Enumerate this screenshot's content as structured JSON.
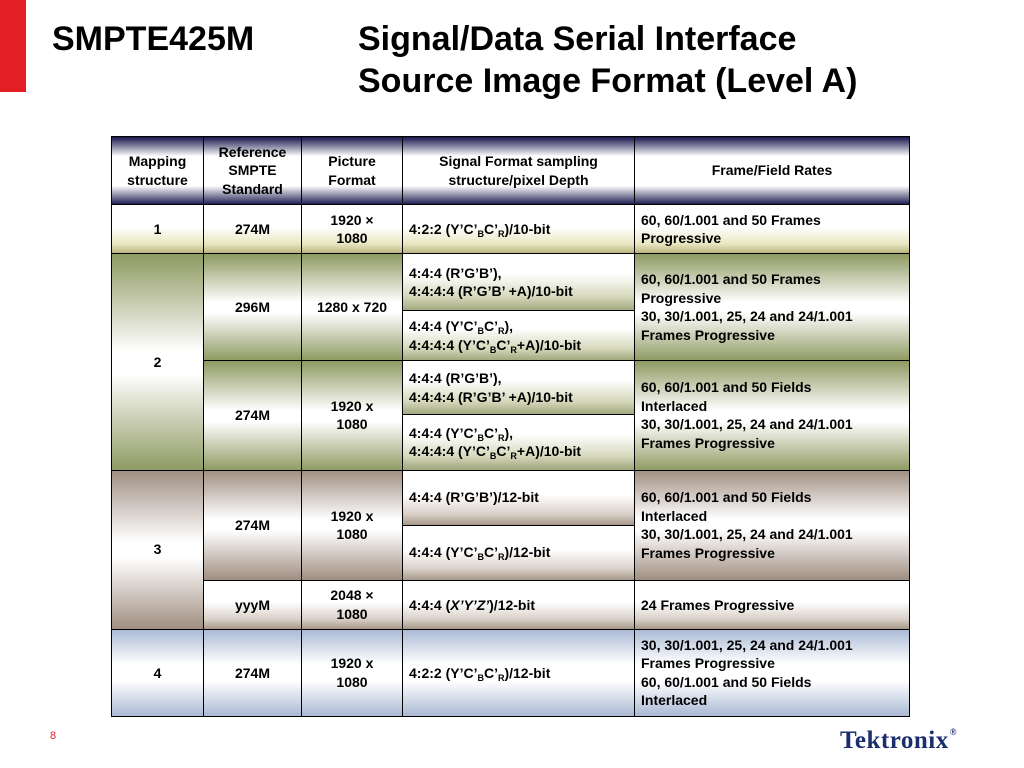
{
  "title": {
    "left": "SMPTE425M",
    "right_line1": "Signal/Data Serial Interface",
    "right_line2": "Source Image Format (Level A)"
  },
  "table": {
    "headers": [
      "Mapping structure",
      "Reference SMPTE Standard",
      "Picture Format",
      "Signal Format sampling structure/pixel Depth",
      "Frame/Field Rates"
    ],
    "rows": {
      "m1": {
        "mapping": "1",
        "standard": "274M",
        "picture": [
          "1920 ×",
          "1080"
        ],
        "signal": {
          "pre": "4:2:2 (Y’C’",
          "s1": "B",
          "mid": "C’",
          "s2": "R",
          "post": ")/10-bit"
        },
        "rates": [
          "60, 60/1.001 and 50 Frames",
          "Progressive"
        ]
      },
      "m2": {
        "mapping": "2",
        "a": {
          "standard": "296M",
          "picture": "1280 x 720",
          "signal_rgb": [
            "4:4:4 (R’G’B’),",
            "4:4:4:4 (R’G’B’ +A)/10-bit"
          ],
          "signal_ycbcr": {
            "l1_pre": "4:4:4 (Y’C’",
            "l1_s1": "B",
            "l1_mid": "C’",
            "l1_s2": "R",
            "l1_post": "),",
            "l2_pre": "4:4:4:4 (Y’C’",
            "l2_s1": "B",
            "l2_mid": "C’",
            "l2_s2": "R",
            "l2_post": "+A)/10-bit"
          },
          "rates": [
            "60, 60/1.001 and 50 Frames",
            "Progressive",
            "30, 30/1.001, 25, 24 and 24/1.001",
            "Frames Progressive"
          ]
        },
        "b": {
          "standard": "274M",
          "picture": [
            "1920 x",
            "1080"
          ],
          "signal_rgb": [
            "4:4:4 (R’G’B’),",
            "4:4:4:4 (R’G’B’ +A)/10-bit"
          ],
          "signal_ycbcr": {
            "l1_pre": "4:4:4 (Y’C’",
            "l1_s1": "B",
            "l1_mid": "C’",
            "l1_s2": "R",
            "l1_post": "),",
            "l2_pre": "4:4:4:4 (Y’C’",
            "l2_s1": "B",
            "l2_mid": "C’",
            "l2_s2": "R",
            "l2_post": "+A)/10-bit"
          },
          "rates": [
            "60, 60/1.001 and 50 Fields",
            "Interlaced",
            "30, 30/1.001, 25, 24 and 24/1.001",
            "Frames Progressive"
          ]
        }
      },
      "m3": {
        "mapping": "3",
        "a": {
          "standard": "274M",
          "picture": [
            "1920 x",
            "1080"
          ],
          "signal_rgb": "4:4:4 (R’G’B’)/12-bit",
          "signal_ycbcr": {
            "pre": "4:4:4 (Y’C’",
            "s1": "B",
            "mid": "C’",
            "s2": "R",
            "post": ")/12-bit"
          },
          "rates": [
            "60, 60/1.001 and 50 Fields",
            "Interlaced",
            "30, 30/1.001, 25, 24 and 24/1.001",
            "Frames Progressive"
          ]
        },
        "b": {
          "standard": "yyyM",
          "picture": [
            "2048 ×",
            "1080"
          ],
          "signal": {
            "pre": "4:4:4 (",
            "italic": "X’Y’Z’",
            "post": ")/12-bit"
          },
          "rates": "24 Frames Progressive"
        }
      },
      "m4": {
        "mapping": "4",
        "standard": "274M",
        "picture": [
          "1920 x",
          "1080"
        ],
        "signal": {
          "pre": "4:2:2 (Y’C’",
          "s1": "B",
          "mid": "C’",
          "s2": "R",
          "post": ")/12-bit"
        },
        "rates": [
          "30, 30/1.001, 25, 24 and 24/1.001",
          "Frames Progressive",
          "60, 60/1.001 and 50 Fields",
          "Interlaced"
        ]
      }
    }
  },
  "footer": {
    "page_number": "8",
    "logo_text": "Tektronix",
    "logo_mark": "®"
  },
  "colors": {
    "accent_red": "#e31e24",
    "header_navy": "#1d1b50",
    "logo_blue": "#1a2f6f"
  }
}
